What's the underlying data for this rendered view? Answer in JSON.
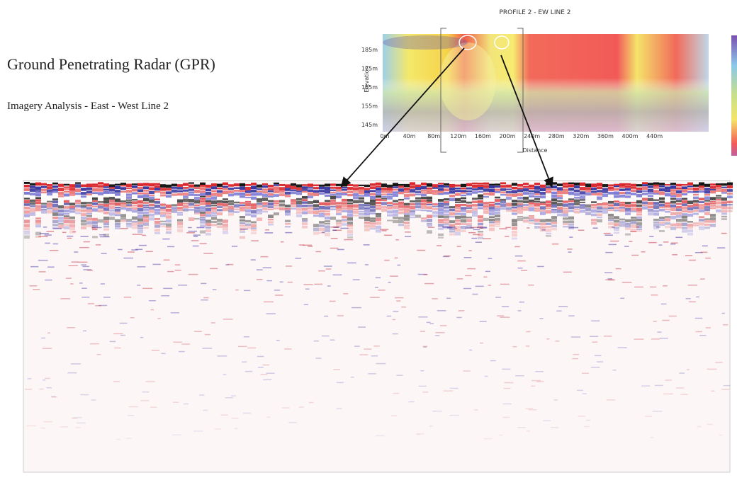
{
  "header": {
    "title": "Ground Penetrating Radar (GPR)",
    "subtitle": "Imagery Analysis - East - West Line 2"
  },
  "profile": {
    "title": "PROFILE 2 - EW LINE 2",
    "y_label": "Elevation",
    "y_ticks": [
      "185m",
      "175m",
      "165m",
      "155m",
      "145m"
    ],
    "x_label": "Distance",
    "x_ticks": [
      "0m",
      "40m",
      "80m",
      "120m",
      "160m",
      "200m",
      "240m",
      "280m",
      "320m",
      "360m",
      "400m",
      "440m"
    ]
  }
}
